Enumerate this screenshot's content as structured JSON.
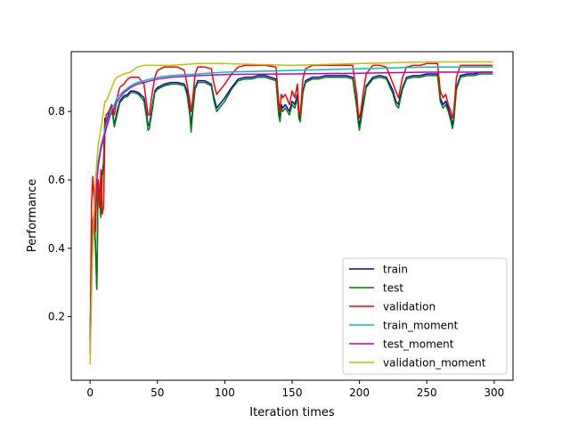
{
  "chart_data": {
    "type": "line",
    "title": "",
    "xlabel": "Iteration times",
    "ylabel": "Performance",
    "xlim": [
      -14,
      314
    ],
    "ylim": [
      0.014,
      0.975
    ],
    "xticks": [
      0,
      50,
      100,
      150,
      200,
      250,
      300
    ],
    "yticks": [
      0.2,
      0.4,
      0.6,
      0.8
    ],
    "ytick_labels": [
      "0.2",
      "0.4",
      "0.6",
      "0.8"
    ],
    "grid": false,
    "legend": "lower-right",
    "series": [
      {
        "name": "train",
        "color": "#0000bf",
        "x": [
          0,
          2,
          3,
          4,
          5,
          6,
          7,
          8,
          9,
          10,
          11,
          12,
          14,
          16,
          18,
          20,
          22,
          25,
          28,
          30,
          33,
          36,
          40,
          42,
          43,
          44,
          46,
          48,
          50,
          55,
          60,
          65,
          70,
          72,
          74,
          75,
          76,
          78,
          80,
          85,
          90,
          92,
          94,
          96,
          98,
          100,
          105,
          110,
          115,
          120,
          125,
          130,
          138,
          140,
          141,
          142,
          143,
          145,
          148,
          150,
          152,
          154,
          155,
          156,
          158,
          160,
          165,
          170,
          175,
          180,
          185,
          190,
          195,
          198,
          199,
          200,
          201,
          203,
          205,
          210,
          215,
          220,
          225,
          227,
          229,
          230,
          232,
          235,
          240,
          245,
          250,
          255,
          258,
          260,
          262,
          264,
          266,
          268,
          269,
          270,
          272,
          275,
          280,
          285,
          290,
          295,
          299
        ],
        "y": [
          0.16,
          0.48,
          0.5,
          0.41,
          0.28,
          0.6,
          0.55,
          0.5,
          0.62,
          0.65,
          0.78,
          0.76,
          0.8,
          0.82,
          0.76,
          0.8,
          0.83,
          0.845,
          0.85,
          0.86,
          0.86,
          0.855,
          0.84,
          0.79,
          0.76,
          0.76,
          0.81,
          0.86,
          0.87,
          0.88,
          0.885,
          0.885,
          0.88,
          0.86,
          0.8,
          0.76,
          0.8,
          0.87,
          0.89,
          0.89,
          0.88,
          0.84,
          0.81,
          0.82,
          0.83,
          0.84,
          0.87,
          0.895,
          0.9,
          0.9,
          0.905,
          0.905,
          0.895,
          0.8,
          0.78,
          0.82,
          0.81,
          0.82,
          0.8,
          0.83,
          0.82,
          0.85,
          0.79,
          0.78,
          0.86,
          0.89,
          0.9,
          0.9,
          0.905,
          0.905,
          0.905,
          0.905,
          0.9,
          0.82,
          0.78,
          0.76,
          0.78,
          0.83,
          0.875,
          0.9,
          0.905,
          0.9,
          0.86,
          0.83,
          0.82,
          0.84,
          0.87,
          0.9,
          0.905,
          0.905,
          0.91,
          0.91,
          0.91,
          0.84,
          0.82,
          0.83,
          0.81,
          0.78,
          0.76,
          0.78,
          0.87,
          0.905,
          0.91,
          0.91,
          0.915,
          0.915,
          0.915
        ]
      },
      {
        "name": "test",
        "color": "#008000",
        "x": [
          0,
          2,
          3,
          4,
          5,
          6,
          7,
          8,
          9,
          10,
          11,
          12,
          14,
          16,
          18,
          20,
          22,
          25,
          28,
          30,
          33,
          36,
          40,
          42,
          43,
          44,
          46,
          48,
          50,
          55,
          60,
          65,
          70,
          72,
          74,
          75,
          76,
          78,
          80,
          85,
          90,
          92,
          94,
          96,
          98,
          100,
          105,
          110,
          115,
          120,
          125,
          130,
          138,
          140,
          141,
          142,
          143,
          145,
          148,
          150,
          152,
          154,
          155,
          156,
          158,
          160,
          165,
          170,
          175,
          180,
          185,
          190,
          195,
          198,
          199,
          200,
          201,
          203,
          205,
          210,
          215,
          220,
          225,
          227,
          229,
          230,
          232,
          235,
          240,
          245,
          250,
          255,
          258,
          260,
          262,
          264,
          266,
          268,
          269,
          270,
          272,
          275,
          280,
          285,
          290,
          295,
          299
        ],
        "y": [
          0.15,
          0.47,
          0.51,
          0.4,
          0.28,
          0.59,
          0.54,
          0.49,
          0.61,
          0.64,
          0.77,
          0.75,
          0.79,
          0.81,
          0.755,
          0.79,
          0.825,
          0.84,
          0.845,
          0.855,
          0.855,
          0.85,
          0.83,
          0.78,
          0.745,
          0.75,
          0.8,
          0.855,
          0.865,
          0.875,
          0.88,
          0.88,
          0.875,
          0.85,
          0.79,
          0.74,
          0.79,
          0.865,
          0.885,
          0.885,
          0.875,
          0.83,
          0.8,
          0.81,
          0.82,
          0.83,
          0.865,
          0.89,
          0.895,
          0.895,
          0.9,
          0.9,
          0.89,
          0.79,
          0.77,
          0.81,
          0.8,
          0.81,
          0.79,
          0.82,
          0.81,
          0.84,
          0.78,
          0.77,
          0.855,
          0.885,
          0.895,
          0.895,
          0.9,
          0.9,
          0.9,
          0.9,
          0.895,
          0.81,
          0.77,
          0.745,
          0.77,
          0.82,
          0.87,
          0.895,
          0.9,
          0.895,
          0.85,
          0.82,
          0.81,
          0.83,
          0.865,
          0.895,
          0.9,
          0.9,
          0.905,
          0.905,
          0.905,
          0.83,
          0.81,
          0.82,
          0.8,
          0.77,
          0.75,
          0.77,
          0.865,
          0.9,
          0.905,
          0.905,
          0.91,
          0.91,
          0.91
        ]
      },
      {
        "name": "validation",
        "color": "#ff0000",
        "x": [
          0,
          1,
          2,
          3,
          4,
          5,
          6,
          7,
          8,
          9,
          10,
          11,
          12,
          14,
          16,
          18,
          20,
          22,
          25,
          28,
          30,
          33,
          36,
          40,
          42,
          43,
          44,
          46,
          48,
          50,
          55,
          60,
          65,
          70,
          72,
          74,
          75,
          76,
          78,
          80,
          85,
          90,
          92,
          94,
          96,
          98,
          100,
          105,
          110,
          115,
          120,
          125,
          130,
          138,
          140,
          141,
          142,
          143,
          145,
          148,
          150,
          152,
          154,
          155,
          156,
          158,
          160,
          165,
          170,
          175,
          180,
          185,
          190,
          195,
          198,
          199,
          200,
          201,
          203,
          205,
          210,
          215,
          220,
          225,
          227,
          229,
          230,
          232,
          235,
          240,
          245,
          250,
          255,
          258,
          260,
          262,
          264,
          266,
          268,
          269,
          270,
          272,
          275,
          280,
          285,
          290,
          295,
          299
        ],
        "y": [
          0.09,
          0.52,
          0.61,
          0.55,
          0.45,
          0.58,
          0.6,
          0.52,
          0.63,
          0.5,
          0.52,
          0.74,
          0.79,
          0.8,
          0.82,
          0.79,
          0.84,
          0.87,
          0.88,
          0.895,
          0.9,
          0.9,
          0.9,
          0.88,
          0.82,
          0.79,
          0.79,
          0.85,
          0.9,
          0.92,
          0.93,
          0.93,
          0.93,
          0.92,
          0.88,
          0.83,
          0.8,
          0.83,
          0.91,
          0.93,
          0.93,
          0.925,
          0.88,
          0.85,
          0.86,
          0.87,
          0.88,
          0.91,
          0.93,
          0.935,
          0.935,
          0.935,
          0.935,
          0.93,
          0.83,
          0.8,
          0.85,
          0.84,
          0.85,
          0.82,
          0.86,
          0.84,
          0.88,
          0.8,
          0.79,
          0.895,
          0.925,
          0.935,
          0.935,
          0.935,
          0.935,
          0.935,
          0.935,
          0.935,
          0.85,
          0.8,
          0.78,
          0.8,
          0.86,
          0.91,
          0.935,
          0.935,
          0.93,
          0.88,
          0.86,
          0.84,
          0.86,
          0.9,
          0.93,
          0.935,
          0.935,
          0.94,
          0.94,
          0.94,
          0.86,
          0.84,
          0.85,
          0.82,
          0.8,
          0.78,
          0.8,
          0.9,
          0.935,
          0.935,
          0.935,
          0.935,
          0.935,
          0.935
        ]
      },
      {
        "name": "train_moment",
        "color": "#00bfbf",
        "x": [
          0,
          1,
          2,
          4,
          6,
          8,
          10,
          12,
          15,
          18,
          20,
          25,
          30,
          35,
          40,
          50,
          60,
          80,
          100,
          150,
          200,
          250,
          299
        ],
        "y": [
          0.15,
          0.3,
          0.42,
          0.55,
          0.65,
          0.7,
          0.73,
          0.76,
          0.8,
          0.82,
          0.84,
          0.86,
          0.875,
          0.885,
          0.89,
          0.9,
          0.905,
          0.91,
          0.915,
          0.92,
          0.925,
          0.93,
          0.93
        ]
      },
      {
        "name": "test_moment",
        "color": "#bf00bf",
        "x": [
          0,
          1,
          2,
          4,
          6,
          8,
          10,
          12,
          15,
          18,
          20,
          25,
          30,
          35,
          40,
          50,
          60,
          80,
          100,
          150,
          200,
          250,
          299
        ],
        "y": [
          0.14,
          0.29,
          0.41,
          0.54,
          0.64,
          0.69,
          0.72,
          0.75,
          0.79,
          0.81,
          0.83,
          0.855,
          0.87,
          0.88,
          0.885,
          0.895,
          0.9,
          0.905,
          0.908,
          0.91,
          0.912,
          0.915,
          0.915
        ]
      },
      {
        "name": "validation_moment",
        "color": "#bfbf00",
        "x": [
          0,
          1,
          2,
          4,
          6,
          8,
          10,
          11,
          12,
          15,
          18,
          20,
          25,
          30,
          35,
          40,
          50,
          60,
          80,
          100,
          150,
          200,
          250,
          299
        ],
        "y": [
          0.06,
          0.25,
          0.42,
          0.6,
          0.7,
          0.75,
          0.8,
          0.83,
          0.83,
          0.86,
          0.89,
          0.9,
          0.91,
          0.915,
          0.93,
          0.935,
          0.935,
          0.935,
          0.94,
          0.94,
          0.935,
          0.94,
          0.945,
          0.945
        ]
      }
    ]
  }
}
